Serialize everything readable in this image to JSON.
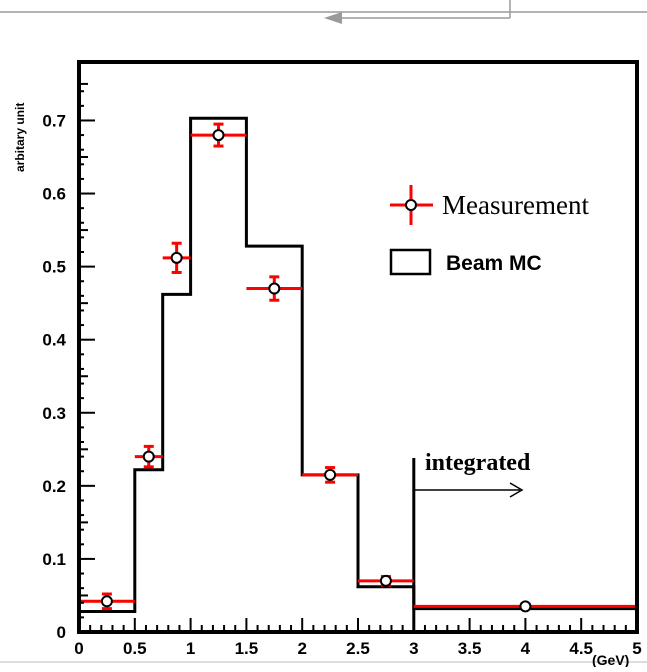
{
  "chart_data": {
    "type": "histogram",
    "ylabel": "arbitary unit",
    "xunit": "(GeV)",
    "xlim": [
      0,
      5
    ],
    "ylim": [
      0,
      0.78
    ],
    "xticks": [
      "0",
      "0.5",
      "1",
      "1.5",
      "2",
      "2.5",
      "3",
      "3.5",
      "4",
      "4.5",
      "5"
    ],
    "yticks": [
      "0",
      "0.1",
      "0.2",
      "0.3",
      "0.4",
      "0.5",
      "0.6",
      "0.7"
    ],
    "bin_edges": [
      0,
      0.5,
      0.75,
      1,
      1.5,
      2,
      2.5,
      3,
      5
    ],
    "series": [
      {
        "name": "Beam MC",
        "style": "step",
        "color": "#000000",
        "values": [
          0.028,
          0.222,
          0.462,
          0.703,
          0.528,
          0.215,
          0.062,
          0.032
        ]
      },
      {
        "name": "Measurement",
        "style": "points",
        "color": "#ff0000",
        "x": [
          0.25,
          0.625,
          0.875,
          1.25,
          1.75,
          2.25,
          2.75,
          4.0
        ],
        "xerr": [
          0.25,
          0.125,
          0.125,
          0.25,
          0.25,
          0.25,
          0.25,
          1.0
        ],
        "y": [
          0.042,
          0.24,
          0.512,
          0.68,
          0.47,
          0.215,
          0.07,
          0.035
        ],
        "yerr": [
          0.01,
          0.014,
          0.02,
          0.015,
          0.016,
          0.01,
          0.006,
          0.003
        ]
      }
    ],
    "legend": {
      "position": "top-right",
      "entries": [
        "Measurement",
        "Beam MC"
      ]
    },
    "annotation": {
      "text": "integrated",
      "x": 3.0
    }
  }
}
